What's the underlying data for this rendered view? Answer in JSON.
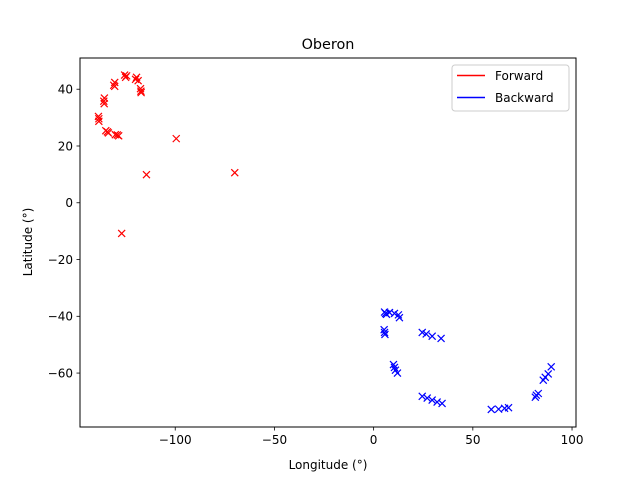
{
  "chart_data": {
    "type": "scatter",
    "title": "Oberon",
    "xlabel": "Longitude (°)",
    "ylabel": "Latitude (°)",
    "xlim": [
      -148,
      102
    ],
    "ylim": [
      -79,
      51
    ],
    "xticks": [
      -100,
      -50,
      0,
      50,
      100
    ],
    "yticks": [
      -60,
      -40,
      -20,
      0,
      20,
      40
    ],
    "grid": false,
    "legend_position": "top-right",
    "series": [
      {
        "name": "Forward",
        "color": "#ff0000",
        "marker": "x",
        "points": [
          [
            -125.5,
            45
          ],
          [
            -124.5,
            44.7
          ],
          [
            -125,
            44.2
          ],
          [
            -119.5,
            44.2
          ],
          [
            -120,
            43.5
          ],
          [
            -118.7,
            43
          ],
          [
            -117.5,
            40.2
          ],
          [
            -117.3,
            39.3
          ],
          [
            -117.2,
            38.8
          ],
          [
            -130.5,
            42.4
          ],
          [
            -131,
            41.4
          ],
          [
            -130.5,
            41
          ],
          [
            -135.7,
            36.9
          ],
          [
            -136,
            35.8
          ],
          [
            -135.8,
            34.9
          ],
          [
            -138.7,
            30.4
          ],
          [
            -138.5,
            29.6
          ],
          [
            -138.5,
            28.7
          ],
          [
            -135,
            25.4
          ],
          [
            -134.2,
            25
          ],
          [
            -133.7,
            24.6
          ],
          [
            -130.2,
            24
          ],
          [
            -129.2,
            23.9
          ],
          [
            -128.5,
            23.6
          ],
          [
            -99.5,
            22.6
          ],
          [
            -114.5,
            9.9
          ],
          [
            -70,
            10.6
          ],
          [
            -127,
            -10.8
          ]
        ]
      },
      {
        "name": "Backward",
        "color": "#0000ff",
        "marker": "x",
        "points": [
          [
            5.5,
            -38.5
          ],
          [
            6,
            -39
          ],
          [
            6.5,
            -39.3
          ],
          [
            8,
            -38.7
          ],
          [
            10.5,
            -39
          ],
          [
            12.5,
            -39.5
          ],
          [
            13,
            -40.5
          ],
          [
            5.3,
            -44.7
          ],
          [
            5.5,
            -45.7
          ],
          [
            5.7,
            -46.4
          ],
          [
            10,
            -57
          ],
          [
            10.5,
            -58
          ],
          [
            11,
            -59
          ],
          [
            12,
            -60
          ],
          [
            24.5,
            -45.7
          ],
          [
            26.5,
            -46.2
          ],
          [
            29.5,
            -47
          ],
          [
            34,
            -47.8
          ],
          [
            24.5,
            -68.2
          ],
          [
            27,
            -68.8
          ],
          [
            29.5,
            -69.5
          ],
          [
            32,
            -70.2
          ],
          [
            34.5,
            -70.7
          ],
          [
            59.3,
            -72.8
          ],
          [
            63,
            -72.7
          ],
          [
            66,
            -72.4
          ],
          [
            68,
            -72.2
          ],
          [
            81.5,
            -68.5
          ],
          [
            82,
            -67.8
          ],
          [
            83,
            -67.2
          ],
          [
            85.5,
            -62.5
          ],
          [
            86.5,
            -61.5
          ],
          [
            88,
            -60.3
          ],
          [
            89.5,
            -57.8
          ]
        ]
      }
    ]
  }
}
